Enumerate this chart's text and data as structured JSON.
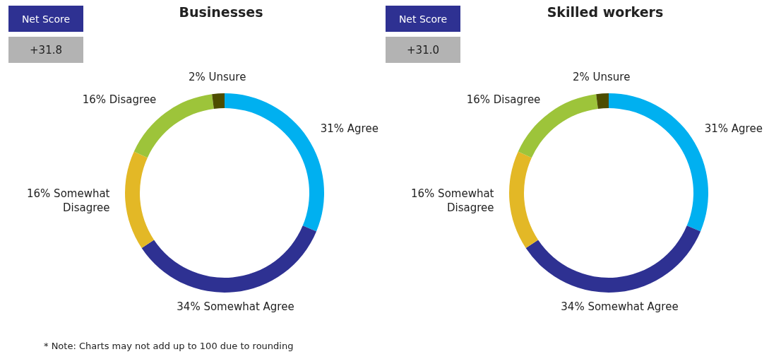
{
  "chart_data": [
    {
      "type": "donut",
      "title": "Businesses",
      "categories": [
        "Agree",
        "Somewhat Agree",
        "Somewhat Disagree",
        "Disagree",
        "Unsure"
      ],
      "values": [
        31,
        34,
        16,
        16,
        2
      ],
      "value_labels": [
        "31%",
        "34%",
        "16%",
        "16%",
        "2%"
      ],
      "colors": [
        "#00b0f0",
        "#2e3192",
        "#e3b826",
        "#9dc43a",
        "#4d4d00"
      ],
      "legend": false,
      "annotations": [
        "Net Score",
        "+31.8",
        "* Note: Charts may not add up to 100 due to rounding"
      ]
    },
    {
      "type": "donut",
      "title": "Skilled workers",
      "categories": [
        "Agree",
        "Somewhat Agree",
        "Somewhat Disagree",
        "Disagree",
        "Unsure"
      ],
      "values": [
        31,
        34,
        16,
        16,
        2
      ],
      "value_labels": [
        "31%",
        "34%",
        "16%",
        "16%",
        "2%"
      ],
      "colors": [
        "#00b0f0",
        "#2e3192",
        "#e3b826",
        "#9dc43a",
        "#4d4d00"
      ],
      "legend": false,
      "annotations": [
        "Net Score",
        "+31.0"
      ]
    }
  ]
}
